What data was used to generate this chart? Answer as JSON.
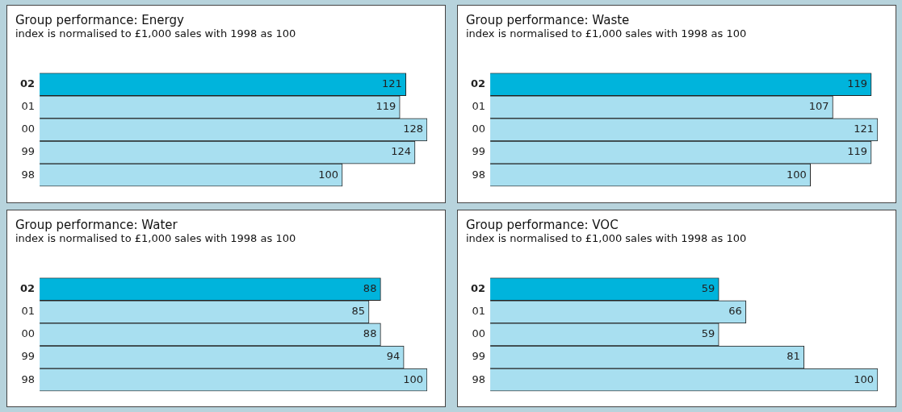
{
  "chart_data": [
    {
      "type": "bar",
      "orientation": "horizontal",
      "title": "Group performance: Energy",
      "subtitle": "index is normalised to £1,000 sales with 1998 as 100",
      "categories": [
        "02",
        "01",
        "00",
        "99",
        "98"
      ],
      "values": [
        121,
        119,
        128,
        124,
        100
      ],
      "colors": [
        "#00b4dc",
        "#a8dff0",
        "#a8dff0",
        "#a8dff0",
        "#a8dff0"
      ],
      "data_labels": true,
      "grid": false,
      "legend": false,
      "tick_labels": "y"
    },
    {
      "type": "bar",
      "orientation": "horizontal",
      "title": "Group performance: Waste",
      "subtitle": "index is normalised to £1,000 sales with 1998 as 100",
      "categories": [
        "02",
        "01",
        "00",
        "99",
        "98"
      ],
      "values": [
        119,
        107,
        121,
        119,
        100
      ],
      "colors": [
        "#00b4dc",
        "#a8dff0",
        "#a8dff0",
        "#a8dff0",
        "#a8dff0"
      ],
      "data_labels": true,
      "grid": false,
      "legend": false,
      "tick_labels": "y"
    },
    {
      "type": "bar",
      "orientation": "horizontal",
      "title": "Group performance: Water",
      "subtitle": "index is normalised to £1,000 sales with 1998 as 100",
      "categories": [
        "02",
        "01",
        "00",
        "99",
        "98"
      ],
      "values": [
        88,
        85,
        88,
        94,
        100
      ],
      "colors": [
        "#00b4dc",
        "#a8dff0",
        "#a8dff0",
        "#a8dff0",
        "#a8dff0"
      ],
      "data_labels": true,
      "grid": false,
      "legend": false,
      "tick_labels": "y"
    },
    {
      "type": "bar",
      "orientation": "horizontal",
      "title": "Group performance: VOC",
      "subtitle": "index is normalised to £1,000 sales with 1998 as 100",
      "categories": [
        "02",
        "01",
        "00",
        "99",
        "98"
      ],
      "values": [
        59,
        66,
        59,
        81,
        100
      ],
      "colors": [
        "#00b4dc",
        "#a8dff0",
        "#a8dff0",
        "#a8dff0",
        "#a8dff0"
      ],
      "data_labels": true,
      "grid": false,
      "legend": false,
      "tick_labels": "y"
    }
  ]
}
